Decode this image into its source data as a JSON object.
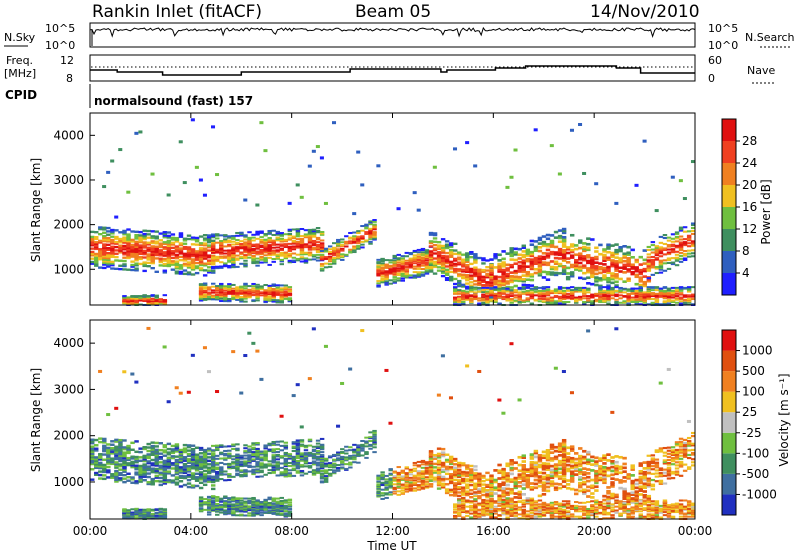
{
  "header": {
    "station": "Rankin Inlet (fitACF)",
    "beam": "Beam 05",
    "date": "14/Nov/2010"
  },
  "panels": {
    "nsky_label": "N.Sky",
    "nsky_ticks": [
      "10^5",
      "10^0"
    ],
    "nsearch_label": "N.Search",
    "nsearch_ticks": [
      "10^5",
      "10^0"
    ],
    "freq_label_line1": "Freq.",
    "freq_label_line2": "[MHz]",
    "freq_ticks": [
      "12",
      "8"
    ],
    "nave_label": "Nave",
    "nave_ticks": [
      "60",
      "0"
    ],
    "cpid_label": "CPID",
    "cpid_value": "normalsound (fast) 157"
  },
  "chart_data": [
    {
      "type": "heatmap",
      "name": "power",
      "ylabel": "Slant Range [km]",
      "yticks": [
        1000,
        2000,
        3000,
        4000
      ],
      "ylim": [
        200,
        4500
      ],
      "colorbar_label": "Power [dB]",
      "colorbar_ticks": [
        4,
        8,
        12,
        16,
        20,
        24,
        28
      ],
      "colorbar_colors": [
        "#1f1fff",
        "#2f5fbf",
        "#3f8f5f",
        "#6fbf3f",
        "#f0c020",
        "#f08020",
        "#f04020",
        "#e01010"
      ]
    },
    {
      "type": "heatmap",
      "name": "velocity",
      "ylabel": "Slant Range [km]",
      "yticks": [
        1000,
        2000,
        3000,
        4000
      ],
      "ylim": [
        200,
        4500
      ],
      "colorbar_label": "Velocity [m s⁻¹]",
      "colorbar_ticks": [
        1000,
        500,
        100,
        25,
        -25,
        -100,
        -500,
        -1000
      ],
      "colorbar_colors": [
        "#2030c0",
        "#3f6fa0",
        "#3f8f5f",
        "#6fbf3f",
        "#c0c0c0",
        "#f0c020",
        "#f08020",
        "#e05010",
        "#e01010"
      ]
    }
  ],
  "xaxis": {
    "label": "Time UT",
    "ticks": [
      "00:00",
      "04:00",
      "08:00",
      "12:00",
      "16:00",
      "20:00",
      "00:00"
    ]
  }
}
